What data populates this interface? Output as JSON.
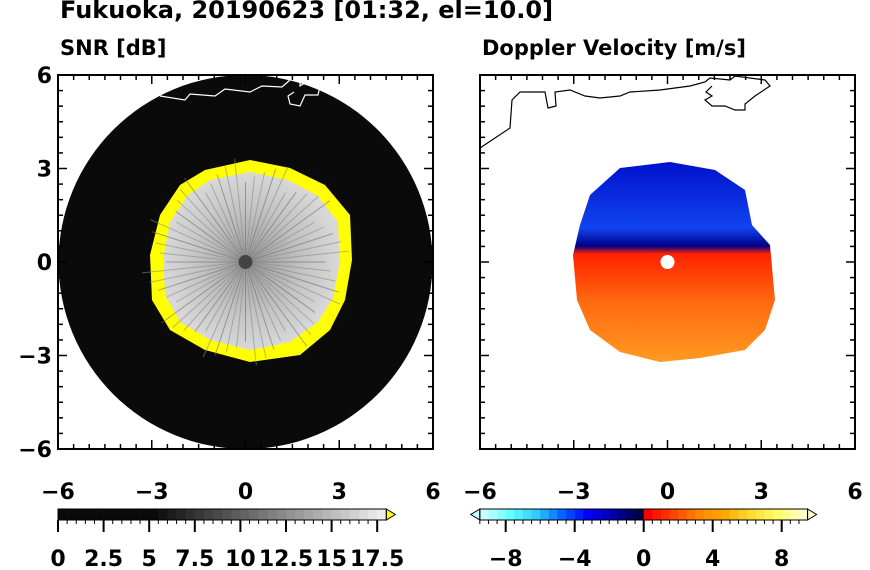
{
  "title": "Fukuoka, 20190623 [01:32, el=10.0]",
  "chart_data": [
    {
      "type": "heatmap",
      "subtitle": "SNR [dB]",
      "xlim": [
        -6,
        6
      ],
      "ylim": [
        -6,
        6
      ],
      "xticks": [
        -6,
        -3,
        0,
        3,
        6
      ],
      "yticks": [
        -6,
        -3,
        0,
        3,
        6
      ],
      "xtick_labels": [
        "−6",
        "−3",
        "0",
        "3",
        "6"
      ],
      "ytick_labels": [
        "−6",
        "−3",
        "0",
        "3",
        "6"
      ],
      "data_range_radius": 6,
      "signal_radius_approx": 3,
      "colorbar": {
        "range": [
          0,
          18
        ],
        "ticks": [
          0,
          2.5,
          5,
          7.5,
          10,
          12.5,
          15,
          17.5
        ],
        "tick_labels": [
          "0",
          "2.5",
          "5",
          "7.5",
          "10",
          "12.5",
          "15",
          "17.5"
        ],
        "over_color": "#ffff00",
        "colors": [
          "#000000",
          "#ffffff"
        ]
      }
    },
    {
      "type": "heatmap",
      "subtitle": "Doppler Velocity [m/s]",
      "xlim": [
        -6,
        6
      ],
      "ylim": [
        -6,
        6
      ],
      "xticks": [
        -6,
        -3,
        0,
        3,
        6
      ],
      "yticks": [
        -6,
        -3,
        0,
        3,
        6
      ],
      "xtick_labels": [
        "−6",
        "−3",
        "0",
        "3",
        "6"
      ],
      "signal_radius_approx": 3.3,
      "colorbar": {
        "range": [
          -10,
          10
        ],
        "ticks": [
          -8,
          -4,
          0,
          4,
          8
        ],
        "tick_labels": [
          "−8",
          "−4",
          "0",
          "4",
          "8"
        ],
        "neg_colors": [
          "#ccffff",
          "#66ffff",
          "#33ccff",
          "#0066ff",
          "#0000ff",
          "#0000aa",
          "#000044"
        ],
        "pos_colors": [
          "#ff0000",
          "#ff4400",
          "#ff8800",
          "#ffaa00",
          "#ffdd33",
          "#ffff66",
          "#ffffcc"
        ]
      }
    }
  ]
}
